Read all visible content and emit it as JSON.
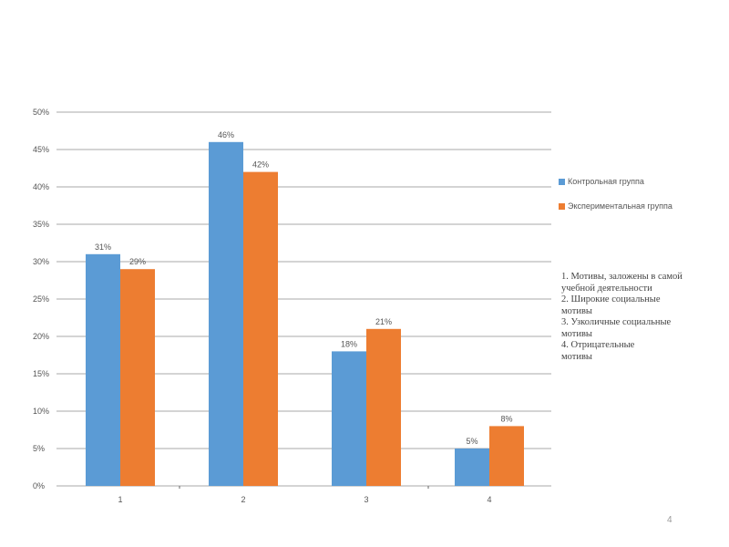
{
  "chart_data": {
    "type": "bar",
    "categories": [
      "1",
      "2",
      "3",
      "4"
    ],
    "series": [
      {
        "name": "Контрольная группа",
        "values": [
          31,
          46,
          18,
          5
        ],
        "labels": [
          "31%",
          "46%",
          "18%",
          "5%"
        ],
        "color": "#5b9bd5"
      },
      {
        "name": "Экспериментальная группа",
        "values": [
          29,
          42,
          21,
          8
        ],
        "labels": [
          "29%",
          "42%",
          "21%",
          "8%"
        ],
        "color": "#ed7d31"
      }
    ],
    "y_ticks": [
      "0%",
      "5%",
      "10%",
      "15%",
      "20%",
      "25%",
      "30%",
      "35%",
      "40%",
      "45%",
      "50%"
    ],
    "ylim": [
      0,
      50
    ],
    "grid": true,
    "legend_position": "right"
  },
  "notes": [
    "1.  Мотивы, заложены в самой учебной деятельности",
    "2. Широкие социальные\n мотивы",
    "3. Узколичные социальные\n мотивы",
    "4. Отрицательные\n мотивы"
  ],
  "page_number": "4",
  "colors": {
    "grid": "#8c8c8c",
    "text": "#555555"
  }
}
